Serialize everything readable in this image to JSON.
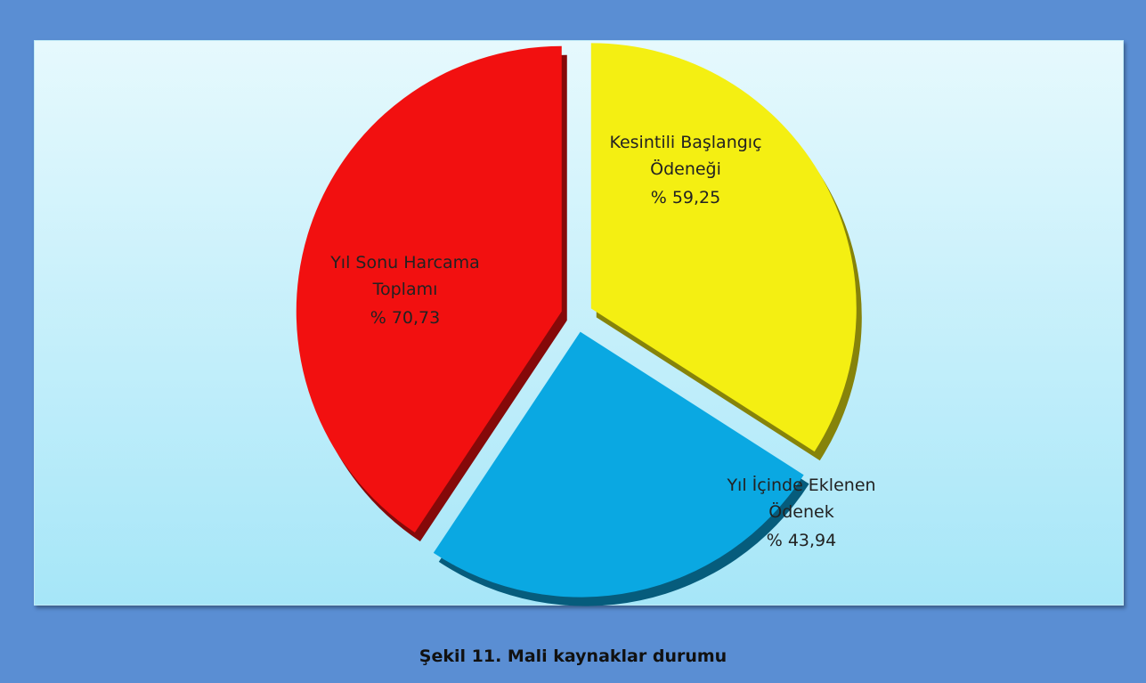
{
  "chart_data": {
    "type": "pie",
    "title": "Şekil 11. Mali kaynaklar durumu",
    "categories": [
      "Kesintili Başlangıç Ödeneği",
      "Yıl İçinde Eklenen Ödenek",
      "Yıl Sonu Harcama Toplamı"
    ],
    "values": [
      59.25,
      43.94,
      70.73
    ],
    "value_labels": [
      "% 59,25",
      "% 43,94",
      "% 70,73"
    ],
    "colors": [
      "#f4ef12",
      "#0aa8e2",
      "#f21010"
    ]
  }
}
